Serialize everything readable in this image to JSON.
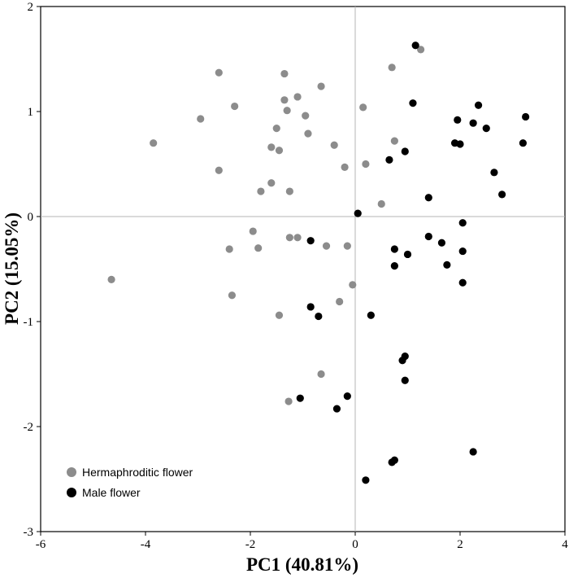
{
  "chart_data": {
    "type": "scatter",
    "title": "",
    "xlabel": "PC1 (40.81%)",
    "ylabel": "PC2 (15.05%)",
    "xlim": [
      -6,
      4
    ],
    "ylim": [
      -3,
      2
    ],
    "xticks": [
      -6,
      -4,
      -2,
      0,
      2,
      4
    ],
    "yticks": [
      -3,
      -2,
      -1,
      0,
      1,
      2
    ],
    "xtick_labels": [
      "-6",
      "-4",
      "-2",
      "0",
      "2",
      "4"
    ],
    "ytick_labels": [
      "-3",
      "-2",
      "-1",
      "0",
      "1",
      "2"
    ],
    "grid": false,
    "zero_lines": true,
    "legend_position": "bottom-left",
    "series": [
      {
        "name": "Hermaphroditic flower",
        "color": "#8c8c8c",
        "points": [
          [
            -2.6,
            1.37
          ],
          [
            -1.35,
            1.36
          ],
          [
            -1.1,
            1.14
          ],
          [
            -1.35,
            1.11
          ],
          [
            -0.65,
            1.24
          ],
          [
            -2.3,
            1.05
          ],
          [
            -1.3,
            1.01
          ],
          [
            -2.95,
            0.93
          ],
          [
            -0.95,
            0.96
          ],
          [
            0.15,
            1.04
          ],
          [
            -1.5,
            0.84
          ],
          [
            -0.9,
            0.79
          ],
          [
            -3.85,
            0.7
          ],
          [
            -1.6,
            0.66
          ],
          [
            -1.45,
            0.63
          ],
          [
            -0.4,
            0.68
          ],
          [
            -2.6,
            0.44
          ],
          [
            -0.2,
            0.47
          ],
          [
            0.2,
            0.5
          ],
          [
            -1.6,
            0.32
          ],
          [
            -1.8,
            0.24
          ],
          [
            -1.25,
            0.24
          ],
          [
            0.5,
            0.12
          ],
          [
            0.7,
            1.42
          ],
          [
            1.25,
            1.59
          ],
          [
            0.75,
            0.72
          ],
          [
            -1.95,
            -0.14
          ],
          [
            -2.4,
            -0.31
          ],
          [
            -1.85,
            -0.3
          ],
          [
            -1.25,
            -0.2
          ],
          [
            -1.1,
            -0.2
          ],
          [
            -0.55,
            -0.28
          ],
          [
            -0.15,
            -0.28
          ],
          [
            -4.65,
            -0.6
          ],
          [
            -0.05,
            -0.65
          ],
          [
            -2.35,
            -0.75
          ],
          [
            -0.3,
            -0.81
          ],
          [
            -1.45,
            -0.94
          ],
          [
            -0.65,
            -1.5
          ],
          [
            -1.27,
            -1.76
          ]
        ]
      },
      {
        "name": "Male flower",
        "color": "#000000",
        "points": [
          [
            1.15,
            1.63
          ],
          [
            1.1,
            1.08
          ],
          [
            2.35,
            1.06
          ],
          [
            1.95,
            0.92
          ],
          [
            2.25,
            0.89
          ],
          [
            2.5,
            0.84
          ],
          [
            3.25,
            0.95
          ],
          [
            1.9,
            0.7
          ],
          [
            2.0,
            0.69
          ],
          [
            3.2,
            0.7
          ],
          [
            0.95,
            0.62
          ],
          [
            0.65,
            0.54
          ],
          [
            2.65,
            0.42
          ],
          [
            2.8,
            0.21
          ],
          [
            1.4,
            0.18
          ],
          [
            0.05,
            0.03
          ],
          [
            2.05,
            -0.06
          ],
          [
            1.4,
            -0.19
          ],
          [
            1.65,
            -0.25
          ],
          [
            0.75,
            -0.31
          ],
          [
            -0.85,
            -0.23
          ],
          [
            2.05,
            -0.33
          ],
          [
            1.0,
            -0.36
          ],
          [
            0.75,
            -0.47
          ],
          [
            1.75,
            -0.46
          ],
          [
            2.05,
            -0.63
          ],
          [
            -0.85,
            -0.86
          ],
          [
            -0.7,
            -0.95
          ],
          [
            0.3,
            -0.94
          ],
          [
            0.95,
            -1.33
          ],
          [
            0.9,
            -1.37
          ],
          [
            0.95,
            -1.56
          ],
          [
            -1.05,
            -1.73
          ],
          [
            -0.35,
            -1.83
          ],
          [
            -0.15,
            -1.71
          ],
          [
            2.25,
            -2.24
          ],
          [
            0.75,
            -2.32
          ],
          [
            0.7,
            -2.34
          ],
          [
            0.2,
            -2.51
          ]
        ]
      }
    ]
  }
}
